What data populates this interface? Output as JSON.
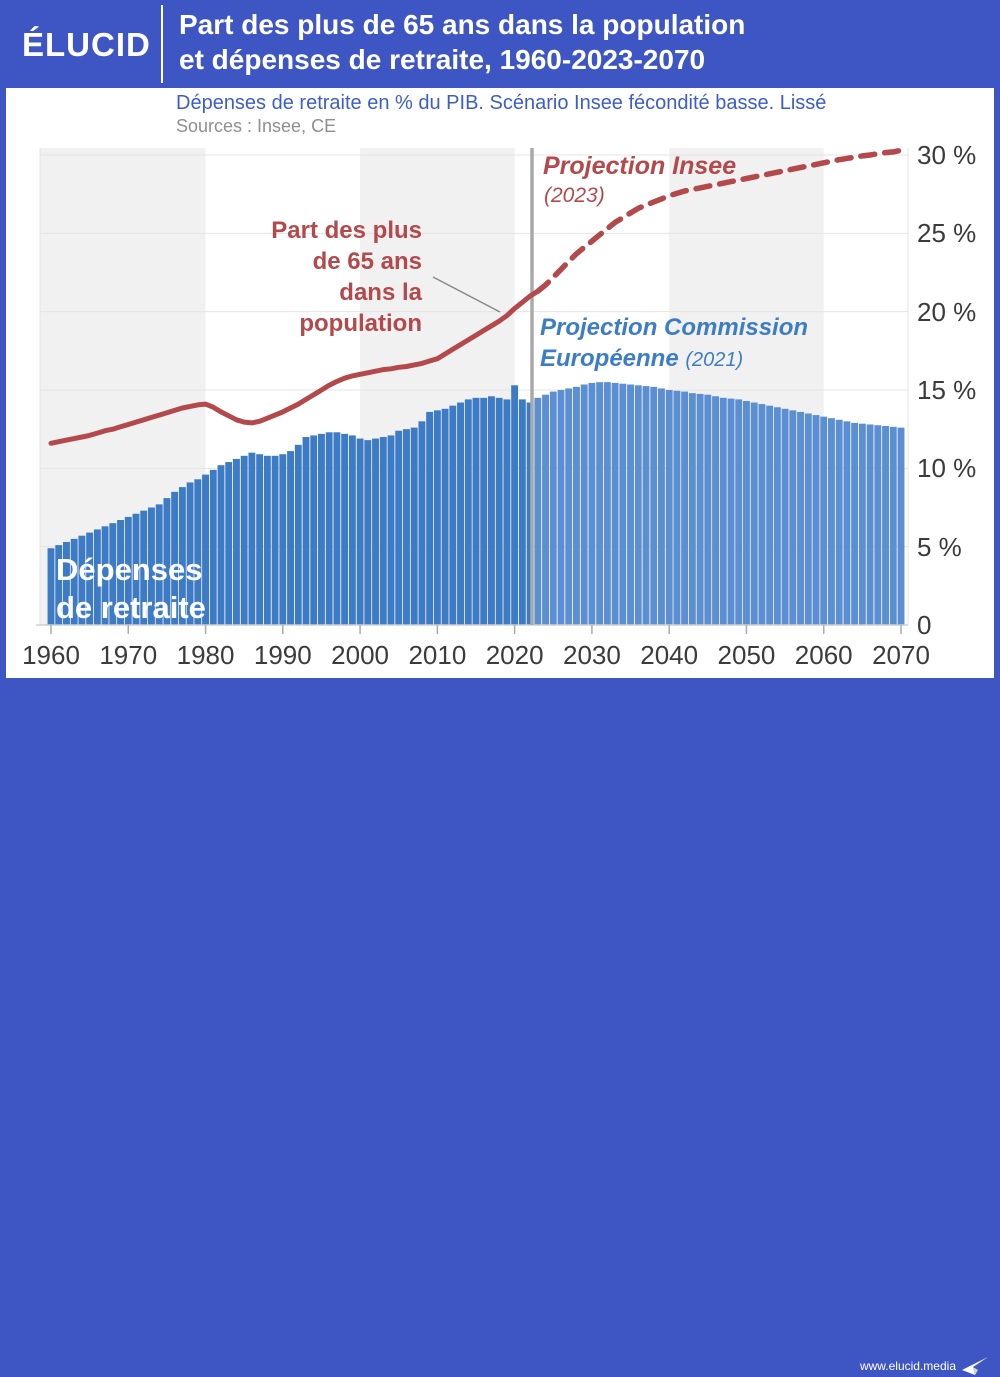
{
  "header": {
    "logo": "ÉLUCID",
    "title": "Part des plus de 65 ans dans la population\net dépenses de retraite, 1960-2023-2070"
  },
  "subtitle": "Dépenses de retraite en % du PIB. Scénario Insee fécondité basse. Lissé",
  "sources": "Sources : Insee, CE",
  "footer": {
    "url": "www.elucid.media"
  },
  "annotations": {
    "population_share": "Part des plus\nde 65 ans\ndans la\npopulation",
    "projection_insee": "Projection Insee",
    "projection_insee_year": "(2023)",
    "projection_ce_line1": "Projection Commission",
    "projection_ce_line2_name": "Européenne ",
    "projection_ce_line2_year": "(2021)",
    "bars_label": "Dépenses\nde retraite"
  },
  "chart_data": {
    "type": "bar",
    "title": "Part des plus de 65 ans dans la population et dépenses de retraite, 1960-2023-2070",
    "xlabel": "",
    "ylabel": "%",
    "ylim": [
      0,
      30
    ],
    "year_start": 1960,
    "year_end": 2070,
    "split_year": 2023,
    "x_ticks": [
      1960,
      1970,
      1980,
      1990,
      2000,
      2010,
      2020,
      2030,
      2040,
      2050,
      2060,
      2070
    ],
    "y_ticks": [
      0,
      5,
      10,
      15,
      20,
      25,
      30
    ],
    "y_tick_labels": [
      "0",
      "5 %",
      "10 %",
      "15 %",
      "20 %",
      "25 %",
      "30 %"
    ],
    "background_bands": [
      [
        1960,
        1980
      ],
      [
        2000,
        2020
      ],
      [
        2040,
        2060
      ]
    ],
    "series": [
      {
        "name": "Dépenses de retraite (% du PIB)",
        "type": "bar",
        "values": [
          4.9,
          5.1,
          5.3,
          5.5,
          5.7,
          5.9,
          6.1,
          6.3,
          6.5,
          6.7,
          6.9,
          7.1,
          7.3,
          7.5,
          7.7,
          8.1,
          8.5,
          8.8,
          9.1,
          9.3,
          9.6,
          9.9,
          10.2,
          10.4,
          10.6,
          10.8,
          11.0,
          10.9,
          10.8,
          10.8,
          10.9,
          11.1,
          11.5,
          12.0,
          12.1,
          12.2,
          12.3,
          12.3,
          12.2,
          12.1,
          11.9,
          11.8,
          11.9,
          12.0,
          12.1,
          12.4,
          12.5,
          12.6,
          13.0,
          13.6,
          13.7,
          13.8,
          14.0,
          14.2,
          14.4,
          14.5,
          14.5,
          14.6,
          14.5,
          14.4,
          15.3,
          14.4,
          14.2,
          14.5,
          14.7,
          14.9,
          15.0,
          15.1,
          15.2,
          15.35,
          15.45,
          15.5,
          15.5,
          15.45,
          15.4,
          15.35,
          15.3,
          15.25,
          15.2,
          15.1,
          15.0,
          14.95,
          14.9,
          14.8,
          14.75,
          14.7,
          14.6,
          14.5,
          14.45,
          14.4,
          14.3,
          14.2,
          14.1,
          14.0,
          13.9,
          13.8,
          13.7,
          13.6,
          13.5,
          13.4,
          13.3,
          13.2,
          13.1,
          13.0,
          12.9,
          12.85,
          12.8,
          12.75,
          12.7,
          12.65,
          12.6
        ]
      },
      {
        "name": "Part des plus de 65 ans dans la population (%)",
        "type": "line",
        "solid_until": 2023,
        "values": [
          11.6,
          11.7,
          11.8,
          11.9,
          12.0,
          12.1,
          12.25,
          12.4,
          12.5,
          12.65,
          12.8,
          12.95,
          13.1,
          13.25,
          13.4,
          13.55,
          13.7,
          13.85,
          13.95,
          14.05,
          14.1,
          13.9,
          13.6,
          13.35,
          13.1,
          12.95,
          12.9,
          13.0,
          13.2,
          13.4,
          13.6,
          13.85,
          14.1,
          14.4,
          14.7,
          15.0,
          15.3,
          15.55,
          15.75,
          15.9,
          16.0,
          16.1,
          16.2,
          16.3,
          16.35,
          16.45,
          16.5,
          16.6,
          16.7,
          16.85,
          17.0,
          17.3,
          17.6,
          17.9,
          18.2,
          18.5,
          18.8,
          19.1,
          19.4,
          19.75,
          20.2,
          20.6,
          21.0,
          21.3,
          21.7,
          22.2,
          22.7,
          23.2,
          23.7,
          24.1,
          24.5,
          24.9,
          25.3,
          25.7,
          26.0,
          26.3,
          26.6,
          26.8,
          27.0,
          27.2,
          27.4,
          27.55,
          27.7,
          27.8,
          27.9,
          28.0,
          28.1,
          28.2,
          28.3,
          28.4,
          28.5,
          28.6,
          28.7,
          28.8,
          28.9,
          29.0,
          29.1,
          29.2,
          29.3,
          29.4,
          29.5,
          29.6,
          29.7,
          29.78,
          29.86,
          29.94,
          30.0,
          30.08,
          30.15,
          30.2,
          30.3
        ]
      }
    ],
    "colors": {
      "bar_hist": "#3D7BC5",
      "bar_proj": "#5C8FD1",
      "line": "#B4494C",
      "band": "#F1F1F2",
      "gridline": "#E4E4E4",
      "divider": "#A9A9A9",
      "accent_blue": "#3E56C4"
    }
  }
}
